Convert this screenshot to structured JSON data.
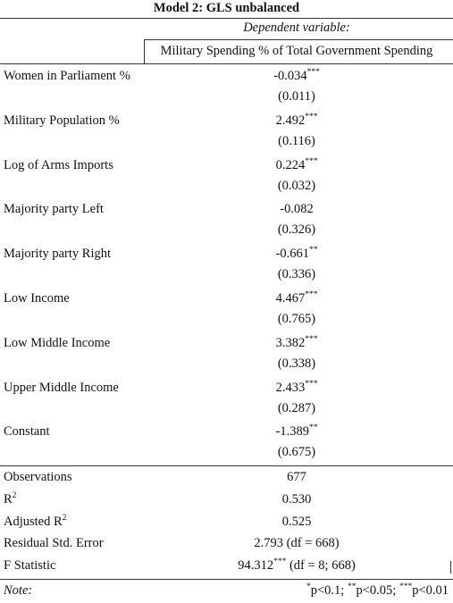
{
  "title": "Model 2: GLS unbalanced",
  "dependent_variable_caption": "Dependent variable:",
  "dependent_variable": "Military Spending % of Total Government Spending",
  "rows": [
    {
      "label": "Women in Parliament %",
      "coef": "-0.034",
      "stars": "***",
      "se": "(0.011)"
    },
    {
      "label": "Military Population %",
      "coef": "2.492",
      "stars": "***",
      "se": "(0.116)"
    },
    {
      "label": "Log of Arms Imports",
      "coef": "0.224",
      "stars": "***",
      "se": "(0.032)"
    },
    {
      "label": "Majority party Left",
      "coef": "-0.082",
      "stars": "",
      "se": "(0.326)"
    },
    {
      "label": "Majority party Right",
      "coef": "-0.661",
      "stars": "**",
      "se": "(0.336)"
    },
    {
      "label": "Low Income",
      "coef": "4.467",
      "stars": "***",
      "se": "(0.765)"
    },
    {
      "label": "Low Middle Income",
      "coef": "3.382",
      "stars": "***",
      "se": "(0.338)"
    },
    {
      "label": "Upper Middle Income",
      "coef": "2.433",
      "stars": "***",
      "se": "(0.287)"
    },
    {
      "label": "Constant",
      "coef": "-1.389",
      "stars": "**",
      "se": "(0.675)"
    }
  ],
  "stats": {
    "observations_label": "Observations",
    "observations": "677",
    "r2_label": "R",
    "r2_sup": "2",
    "r2": "0.530",
    "adj_r2_label": "Adjusted R",
    "adj_r2_sup": "2",
    "adj_r2": "0.525",
    "rse_label": "Residual Std. Error",
    "rse": "2.793 (df = 668)",
    "f_label": "F Statistic",
    "f_value": "94.312",
    "f_stars": "***",
    "f_df": " (df = 8; 668)"
  },
  "note": {
    "label": "Note:",
    "s1": "*",
    "t1": "p<0.1; ",
    "s2": "**",
    "t2": "p<0.05; ",
    "s3": "***",
    "t3": "p<0.01"
  }
}
